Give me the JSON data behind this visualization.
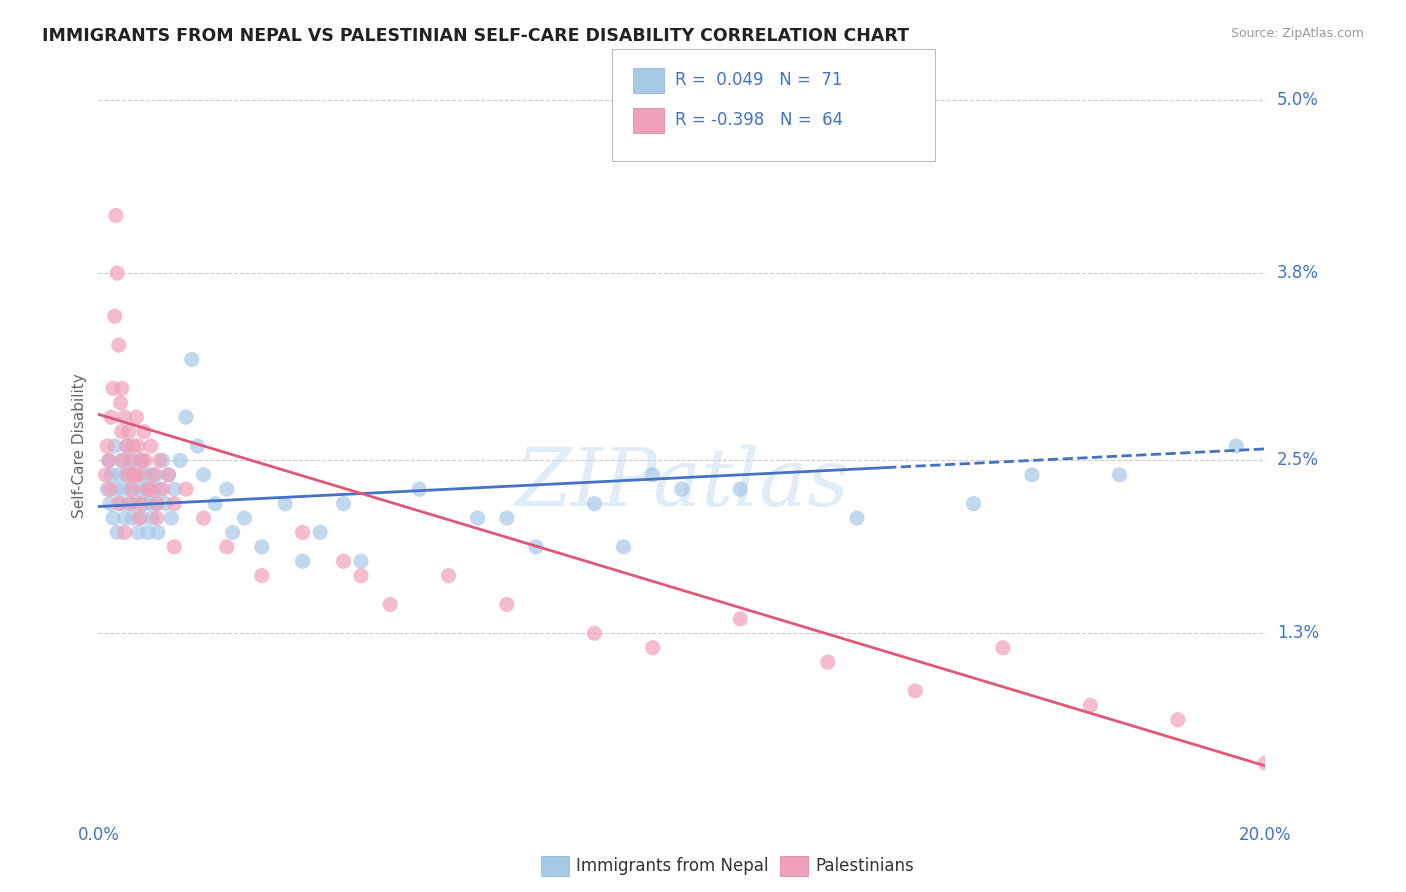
{
  "title": "IMMIGRANTS FROM NEPAL VS PALESTINIAN SELF-CARE DISABILITY CORRELATION CHART",
  "source": "Source: ZipAtlas.com",
  "ylabel": "Self-Care Disability",
  "y_ticks": [
    0.0,
    1.3,
    2.5,
    3.8,
    5.0
  ],
  "y_tick_labels": [
    "",
    "1.3%",
    "2.5%",
    "3.8%",
    "5.0%"
  ],
  "x_lim": [
    0.0,
    20.0
  ],
  "y_lim": [
    0.0,
    5.2
  ],
  "watermark": "ZIPatlas",
  "legend": {
    "series1_label": "Immigrants from Nepal",
    "series2_label": "Palestinians",
    "series1_R": "0.049",
    "series1_N": "71",
    "series2_R": "-0.398",
    "series2_N": "64"
  },
  "series1_color": "#a8c8e8",
  "series2_color": "#f0a0b8",
  "trendline1_color": "#4472c4",
  "trendline2_color": "#e05878",
  "background_color": "#ffffff",
  "grid_color": "#cccccc",
  "title_color": "#222222",
  "axis_label_color": "#4472c4",
  "trendline1_start_y": 2.18,
  "trendline1_end_y": 2.58,
  "trendline2_start_y": 2.82,
  "trendline2_end_y": 0.38,
  "series1_x": [
    0.15,
    0.18,
    0.2,
    0.22,
    0.25,
    0.28,
    0.3,
    0.32,
    0.35,
    0.38,
    0.4,
    0.42,
    0.45,
    0.48,
    0.5,
    0.52,
    0.55,
    0.58,
    0.6,
    0.62,
    0.65,
    0.68,
    0.7,
    0.72,
    0.75,
    0.78,
    0.8,
    0.82,
    0.85,
    0.88,
    0.9,
    0.92,
    0.95,
    0.98,
    1.0,
    1.02,
    1.05,
    1.1,
    1.15,
    1.2,
    1.25,
    1.3,
    1.4,
    1.5,
    1.6,
    1.7,
    1.8,
    2.0,
    2.2,
    2.5,
    2.8,
    3.2,
    3.8,
    4.5,
    5.5,
    6.5,
    7.5,
    8.5,
    9.5,
    11.0,
    13.0,
    15.0,
    17.5,
    2.3,
    4.2,
    3.5,
    7.0,
    10.0,
    16.0,
    19.5,
    9.0
  ],
  "series1_y": [
    2.3,
    2.5,
    2.2,
    2.4,
    2.1,
    2.6,
    2.3,
    2.0,
    2.4,
    2.2,
    2.5,
    2.3,
    2.1,
    2.4,
    2.6,
    2.2,
    2.3,
    2.1,
    2.5,
    2.4,
    2.2,
    2.0,
    2.3,
    2.5,
    2.1,
    2.4,
    2.2,
    2.3,
    2.0,
    2.4,
    2.2,
    2.1,
    2.3,
    2.4,
    2.2,
    2.0,
    2.3,
    2.5,
    2.2,
    2.4,
    2.1,
    2.3,
    2.5,
    2.8,
    3.2,
    2.6,
    2.4,
    2.2,
    2.3,
    2.1,
    1.9,
    2.2,
    2.0,
    1.8,
    2.3,
    2.1,
    1.9,
    2.2,
    2.4,
    2.3,
    2.1,
    2.2,
    2.4,
    2.0,
    2.2,
    1.8,
    2.1,
    2.3,
    2.4,
    2.6,
    1.9
  ],
  "series2_x": [
    0.12,
    0.15,
    0.18,
    0.2,
    0.22,
    0.25,
    0.28,
    0.3,
    0.32,
    0.35,
    0.38,
    0.4,
    0.42,
    0.45,
    0.48,
    0.5,
    0.52,
    0.55,
    0.58,
    0.6,
    0.62,
    0.65,
    0.68,
    0.7,
    0.72,
    0.75,
    0.78,
    0.8,
    0.85,
    0.9,
    0.95,
    1.0,
    1.05,
    1.1,
    1.2,
    1.3,
    1.5,
    1.8,
    2.2,
    2.8,
    3.5,
    4.2,
    5.0,
    6.0,
    7.0,
    8.5,
    9.5,
    11.0,
    12.5,
    14.0,
    15.5,
    17.0,
    18.5,
    20.0,
    1.0,
    1.3,
    4.5,
    0.4,
    0.35,
    0.45,
    0.9,
    0.7,
    0.6,
    0.55
  ],
  "series2_y": [
    2.4,
    2.6,
    2.5,
    2.3,
    2.8,
    3.0,
    3.5,
    4.2,
    3.8,
    3.3,
    2.9,
    2.7,
    2.5,
    2.8,
    2.6,
    2.4,
    2.7,
    2.5,
    2.3,
    2.6,
    2.4,
    2.8,
    2.6,
    2.4,
    2.2,
    2.5,
    2.7,
    2.5,
    2.3,
    2.6,
    2.4,
    2.2,
    2.5,
    2.3,
    2.4,
    2.2,
    2.3,
    2.1,
    1.9,
    1.7,
    2.0,
    1.8,
    1.5,
    1.7,
    1.5,
    1.3,
    1.2,
    1.4,
    1.1,
    0.9,
    1.2,
    0.8,
    0.7,
    0.4,
    2.1,
    1.9,
    1.7,
    3.0,
    2.2,
    2.0,
    2.3,
    2.1,
    2.4,
    2.2
  ]
}
